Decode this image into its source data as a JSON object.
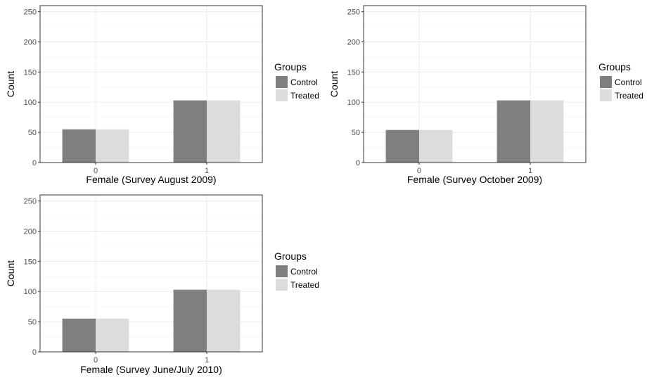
{
  "chart_data": [
    {
      "type": "bar",
      "xlabel": "Female (Survey August 2009)",
      "ylabel": "Count",
      "categories": [
        "0",
        "1"
      ],
      "ylim": [
        0,
        260
      ],
      "yticks": [
        0,
        50,
        100,
        150,
        200,
        250
      ],
      "series": [
        {
          "name": "Control",
          "color": "#7f7f7f",
          "values": [
            55,
            103
          ]
        },
        {
          "name": "Treated",
          "color": "#dcdcdc",
          "values": [
            55,
            103
          ]
        }
      ],
      "legend": {
        "title": "Groups",
        "position": "right"
      },
      "grid": true
    },
    {
      "type": "bar",
      "xlabel": "Female (Survey October 2009)",
      "ylabel": "Count",
      "categories": [
        "0",
        "1"
      ],
      "ylim": [
        0,
        260
      ],
      "yticks": [
        0,
        50,
        100,
        150,
        200,
        250
      ],
      "series": [
        {
          "name": "Control",
          "color": "#7f7f7f",
          "values": [
            54,
            103
          ]
        },
        {
          "name": "Treated",
          "color": "#dcdcdc",
          "values": [
            54,
            103
          ]
        }
      ],
      "legend": {
        "title": "Groups",
        "position": "right"
      },
      "grid": true
    },
    {
      "type": "bar",
      "xlabel": "Female (Survey June/July 2010)",
      "ylabel": "Count",
      "categories": [
        "0",
        "1"
      ],
      "ylim": [
        0,
        260
      ],
      "yticks": [
        0,
        50,
        100,
        150,
        200,
        250
      ],
      "series": [
        {
          "name": "Control",
          "color": "#7f7f7f",
          "values": [
            55,
            103
          ]
        },
        {
          "name": "Treated",
          "color": "#dcdcdc",
          "values": [
            55,
            103
          ]
        }
      ],
      "legend": {
        "title": "Groups",
        "position": "right"
      },
      "grid": true
    }
  ]
}
